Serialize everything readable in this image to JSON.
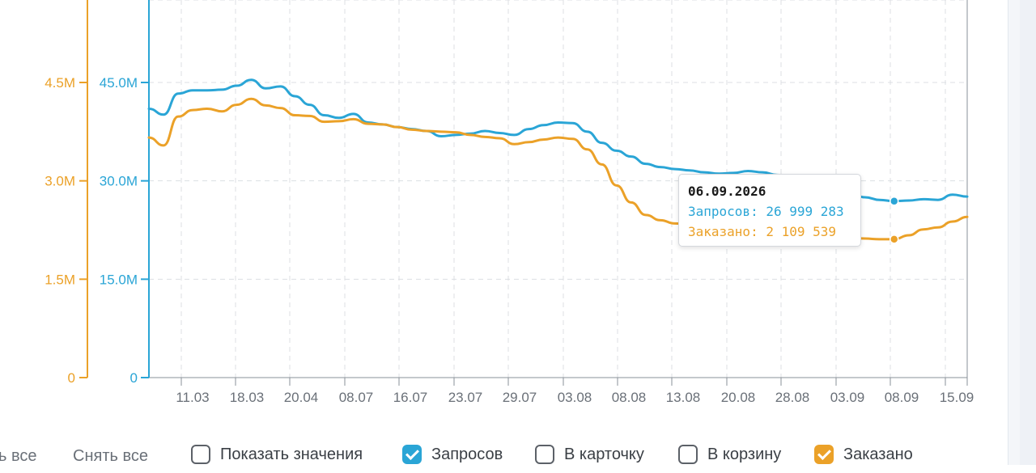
{
  "chart_data": {
    "type": "line",
    "left_axis": {
      "ticks": [
        "4.5M",
        "3.0M",
        "1.5M",
        "0"
      ],
      "values": [
        4500000,
        3000000,
        1500000,
        0
      ],
      "color": "#eba128"
    },
    "right_axis": {
      "ticks": [
        "45.0M",
        "30.0M",
        "15.0M",
        "0"
      ],
      "values": [
        45000000,
        30000000,
        15000000,
        0
      ],
      "color": "#2aa5d6"
    },
    "ylim": [
      0,
      60000000
    ],
    "x_ticks": [
      "11.03",
      "18.03",
      "20.04",
      "08.07",
      "16.07",
      "23.07",
      "29.07",
      "03.08",
      "08.08",
      "13.08",
      "20.08",
      "28.08",
      "03.09",
      "08.09",
      "15.09"
    ],
    "grid": true,
    "series": [
      {
        "name": "Запросов",
        "color": "#2aa5d6",
        "values": [
          41.0,
          40.1,
          43.3,
          43.8,
          43.8,
          43.9,
          44.5,
          45.4,
          44.1,
          44.4,
          42.9,
          41.6,
          40.0,
          39.6,
          40.2,
          38.9,
          38.6,
          38.2,
          37.9,
          37.6,
          36.8,
          37.0,
          37.2,
          37.6,
          37.3,
          37.0,
          37.9,
          38.5,
          38.9,
          38.8,
          37.5,
          35.8,
          34.6,
          33.7,
          32.6,
          32.1,
          31.8,
          31.6,
          31.3,
          31.1,
          31.2,
          31.5,
          31.3,
          30.9,
          30.3,
          29.9,
          29.3,
          28.7,
          28.1,
          27.5,
          27.1,
          26.9,
          27.0,
          27.2,
          27.1,
          27.9,
          27.6
        ]
      },
      {
        "name": "Заказано",
        "color": "#eba128",
        "values": [
          3.66,
          3.54,
          3.98,
          4.08,
          4.1,
          4.06,
          4.16,
          4.25,
          4.15,
          4.11,
          4.0,
          3.99,
          3.9,
          3.91,
          3.94,
          3.87,
          3.86,
          3.82,
          3.78,
          3.76,
          3.75,
          3.74,
          3.7,
          3.67,
          3.65,
          3.56,
          3.59,
          3.63,
          3.66,
          3.64,
          3.48,
          3.25,
          2.93,
          2.67,
          2.48,
          2.4,
          2.35,
          2.34,
          2.3,
          2.25,
          2.22,
          2.21,
          2.2,
          2.19,
          2.18,
          2.17,
          2.16,
          2.14,
          2.13,
          2.12,
          2.11,
          2.11,
          2.17,
          2.26,
          2.29,
          2.38,
          2.45
        ]
      }
    ]
  },
  "tooltip": {
    "date": "06.09.2026",
    "requests": "Запросов: 26 999 283",
    "ordered": "Заказано: 2 109 539"
  },
  "controls": {
    "select_all": "ь все",
    "deselect_all": "Снять все",
    "checkboxes": [
      {
        "label": "Показать значения",
        "checked": false,
        "color": "#5c6168"
      },
      {
        "label": "Запросов",
        "checked": true,
        "color": "#2aa5d6"
      },
      {
        "label": "В карточку",
        "checked": false,
        "color": "#5c6168"
      },
      {
        "label": "В корзину",
        "checked": false,
        "color": "#5c6168"
      },
      {
        "label": "Заказано",
        "checked": true,
        "color": "#eba128"
      }
    ]
  }
}
